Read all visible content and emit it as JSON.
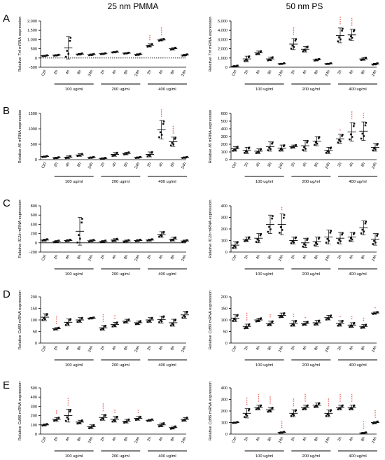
{
  "column_titles": [
    "25 nm PMMA",
    "50 nm PS"
  ],
  "row_letters": [
    "A",
    "B",
    "C",
    "D",
    "E"
  ],
  "categories": [
    "Ctrl",
    "2h",
    "4h",
    "8h",
    "24h",
    "2h",
    "4h",
    "8h",
    "24h",
    "2h",
    "4h",
    "8h",
    "24h"
  ],
  "dose_groups": [
    "100 ug/ml",
    "200 ug/ml",
    "400 ug/ml"
  ],
  "chart_data": [
    {
      "id": "A-left",
      "type": "scatter",
      "ylabel_prefix": "Relative ",
      "gene": "Tnf",
      "ylabel_suffix": " mRNA expression",
      "ylim": [
        -500,
        2000
      ],
      "yticks": [
        -500,
        0,
        500,
        1000,
        1500,
        2000
      ],
      "ytick_labels": [
        "-500",
        "0",
        "500",
        "1,000",
        "1,500",
        "2,000"
      ],
      "zero_dashed": true,
      "means": [
        120,
        150,
        550,
        210,
        180,
        230,
        320,
        260,
        190,
        680,
        980,
        500,
        160
      ],
      "sd": [
        30,
        30,
        600,
        40,
        40,
        30,
        30,
        30,
        40,
        80,
        60,
        60,
        40
      ],
      "stars": [
        "",
        "",
        "",
        "",
        "",
        "",
        "",
        "",
        "",
        "***",
        "****",
        "",
        ""
      ]
    },
    {
      "id": "A-right",
      "type": "scatter",
      "ylabel_prefix": "Relative ",
      "gene": "Tnf",
      "ylabel_suffix": " mRNA expression",
      "ylim": [
        0,
        5000
      ],
      "yticks": [
        0,
        1000,
        2000,
        3000,
        4000,
        5000
      ],
      "ytick_labels": [
        "0",
        "1,000",
        "2,000",
        "3,000",
        "4,000",
        "5,000"
      ],
      "means": [
        120,
        900,
        1550,
        900,
        380,
        2500,
        1950,
        800,
        380,
        3450,
        3500,
        900,
        350
      ],
      "sd": [
        60,
        300,
        200,
        200,
        50,
        600,
        300,
        100,
        50,
        800,
        600,
        150,
        80
      ],
      "stars": [
        "",
        "",
        "",
        "",
        "",
        "****",
        "",
        "",
        "",
        "****",
        "****",
        "",
        ""
      ]
    },
    {
      "id": "B-left",
      "type": "scatter",
      "ylabel_prefix": "Relative ",
      "gene": "Il6",
      "ylabel_suffix": " mRNA expression",
      "ylim": [
        0,
        1500
      ],
      "yticks": [
        0,
        500,
        1000,
        1500
      ],
      "ytick_labels": [
        "0",
        "500",
        "1000",
        "1500"
      ],
      "means": [
        100,
        60,
        80,
        150,
        70,
        40,
        170,
        200,
        70,
        170,
        970,
        580,
        70
      ],
      "sd": [
        20,
        20,
        40,
        40,
        20,
        20,
        60,
        40,
        20,
        80,
        300,
        150,
        20
      ],
      "stars": [
        "",
        "",
        "",
        "",
        "",
        "",
        "",
        "",
        "",
        "",
        "****",
        "****",
        ""
      ]
    },
    {
      "id": "B-right",
      "type": "scatter",
      "ylabel_prefix": "Relative ",
      "gene": "Il6",
      "ylabel_suffix": " mRNA expression",
      "ylim": [
        0,
        600
      ],
      "yticks": [
        0,
        100,
        200,
        300,
        400,
        500,
        600
      ],
      "ytick_labels": [
        "0",
        "100",
        "200",
        "300",
        "400",
        "500",
        "600"
      ],
      "means": [
        140,
        120,
        110,
        170,
        150,
        170,
        180,
        240,
        120,
        270,
        360,
        370,
        160
      ],
      "sd": [
        30,
        40,
        30,
        60,
        40,
        20,
        70,
        60,
        40,
        60,
        120,
        120,
        50
      ],
      "stars": [
        "",
        "",
        "",
        "",
        "",
        "",
        "",
        "",
        "",
        "*",
        "****",
        "***",
        ""
      ]
    },
    {
      "id": "C-left",
      "type": "scatter",
      "ylabel_prefix": "Relative ",
      "gene": "Il12b",
      "ylabel_suffix": " mRNA expression",
      "ylim": [
        -200,
        800
      ],
      "yticks": [
        -200,
        0,
        200,
        400,
        600,
        800
      ],
      "ytick_labels": [
        "-200",
        "0",
        "200",
        "400",
        "600",
        "800"
      ],
      "means": [
        60,
        30,
        50,
        250,
        45,
        30,
        60,
        40,
        50,
        60,
        180,
        80,
        40
      ],
      "sd": [
        20,
        20,
        20,
        300,
        20,
        20,
        30,
        20,
        20,
        20,
        60,
        40,
        20
      ],
      "stars": [
        "",
        "",
        "",
        "",
        "",
        "",
        "",
        "",
        "",
        "",
        "",
        "",
        ""
      ]
    },
    {
      "id": "C-right",
      "type": "scatter",
      "ylabel_prefix": "Relative ",
      "gene": "Il12b",
      "ylabel_suffix": " mRNA expression",
      "ylim": [
        0,
        400
      ],
      "yticks": [
        0,
        100,
        200,
        300,
        400
      ],
      "ytick_labels": [
        "0",
        "100",
        "200",
        "300",
        "400"
      ],
      "means": [
        60,
        110,
        120,
        240,
        240,
        100,
        80,
        90,
        130,
        120,
        130,
        210,
        110
      ],
      "sd": [
        30,
        20,
        40,
        80,
        90,
        30,
        40,
        40,
        60,
        50,
        40,
        60,
        50
      ],
      "stars": [
        "",
        "",
        "",
        "",
        "**",
        "",
        "",
        "",
        "",
        "",
        "",
        "",
        ""
      ]
    },
    {
      "id": "D-left",
      "type": "scatter",
      "ylabel_prefix": "Relative ",
      "gene": "Cd80",
      "ylabel_suffix": " mRNA expression",
      "ylim": [
        0,
        200
      ],
      "yticks": [
        0,
        50,
        100,
        150,
        200
      ],
      "ytick_labels": [
        "0",
        "50",
        "100",
        "150",
        "200"
      ],
      "means": [
        112,
        62,
        90,
        100,
        108,
        66,
        80,
        95,
        88,
        100,
        102,
        88,
        122
      ],
      "sd": [
        15,
        5,
        15,
        10,
        3,
        10,
        10,
        8,
        8,
        10,
        15,
        15,
        15
      ],
      "stars": [
        "",
        "****",
        "",
        "",
        "",
        "****",
        "**",
        "",
        "",
        "",
        "",
        "",
        ""
      ]
    },
    {
      "id": "D-right",
      "type": "scatter",
      "ylabel_prefix": "Relative ",
      "gene": "Cd80",
      "ylabel_suffix": " mRNA expression",
      "ylim": [
        0,
        200
      ],
      "yticks": [
        0,
        50,
        100,
        150,
        200
      ],
      "ytick_labels": [
        "0",
        "50",
        "100",
        "150",
        "200"
      ],
      "means": [
        108,
        72,
        100,
        85,
        120,
        85,
        85,
        88,
        110,
        85,
        78,
        72,
        130
      ],
      "sd": [
        15,
        10,
        8,
        10,
        10,
        12,
        8,
        10,
        10,
        12,
        10,
        8,
        5
      ],
      "stars": [
        "",
        "****",
        "",
        "**",
        "",
        "**",
        "*",
        "",
        "",
        "*",
        "**",
        "**",
        "*"
      ]
    },
    {
      "id": "E-left",
      "type": "scatter",
      "ylabel_prefix": "Relative ",
      "gene": "Cd86",
      "ylabel_suffix": " mRNA expression",
      "ylim": [
        0,
        500
      ],
      "yticks": [
        0,
        100,
        200,
        300,
        400,
        500
      ],
      "ytick_labels": [
        "0",
        "100",
        "200",
        "300",
        "400",
        "500"
      ],
      "means": [
        100,
        160,
        200,
        130,
        80,
        180,
        160,
        140,
        170,
        150,
        100,
        70,
        160
      ],
      "sd": [
        10,
        20,
        70,
        20,
        20,
        30,
        30,
        20,
        20,
        10,
        20,
        15,
        20
      ],
      "stars": [
        "",
        "**",
        "****",
        "",
        "",
        "****",
        "**",
        "",
        "**",
        "",
        "",
        "",
        ""
      ]
    },
    {
      "id": "E-right",
      "type": "scatter",
      "ylabel_prefix": "Relative ",
      "gene": "Cd86",
      "ylabel_suffix": " mRNA expression",
      "ylim": [
        0,
        400
      ],
      "yticks": [
        0,
        100,
        200,
        300,
        400
      ],
      "ytick_labels": [
        "0",
        "100",
        "200",
        "300",
        "400"
      ],
      "means": [
        100,
        180,
        230,
        210,
        15,
        180,
        230,
        250,
        180,
        230,
        230,
        10,
        100
      ],
      "sd": [
        5,
        40,
        20,
        20,
        5,
        30,
        20,
        20,
        30,
        20,
        20,
        5,
        10
      ],
      "stars": [
        "",
        "****",
        "****",
        "****",
        "****",
        "****",
        "****",
        "",
        "****",
        "****",
        "****",
        "****",
        "****"
      ]
    }
  ]
}
